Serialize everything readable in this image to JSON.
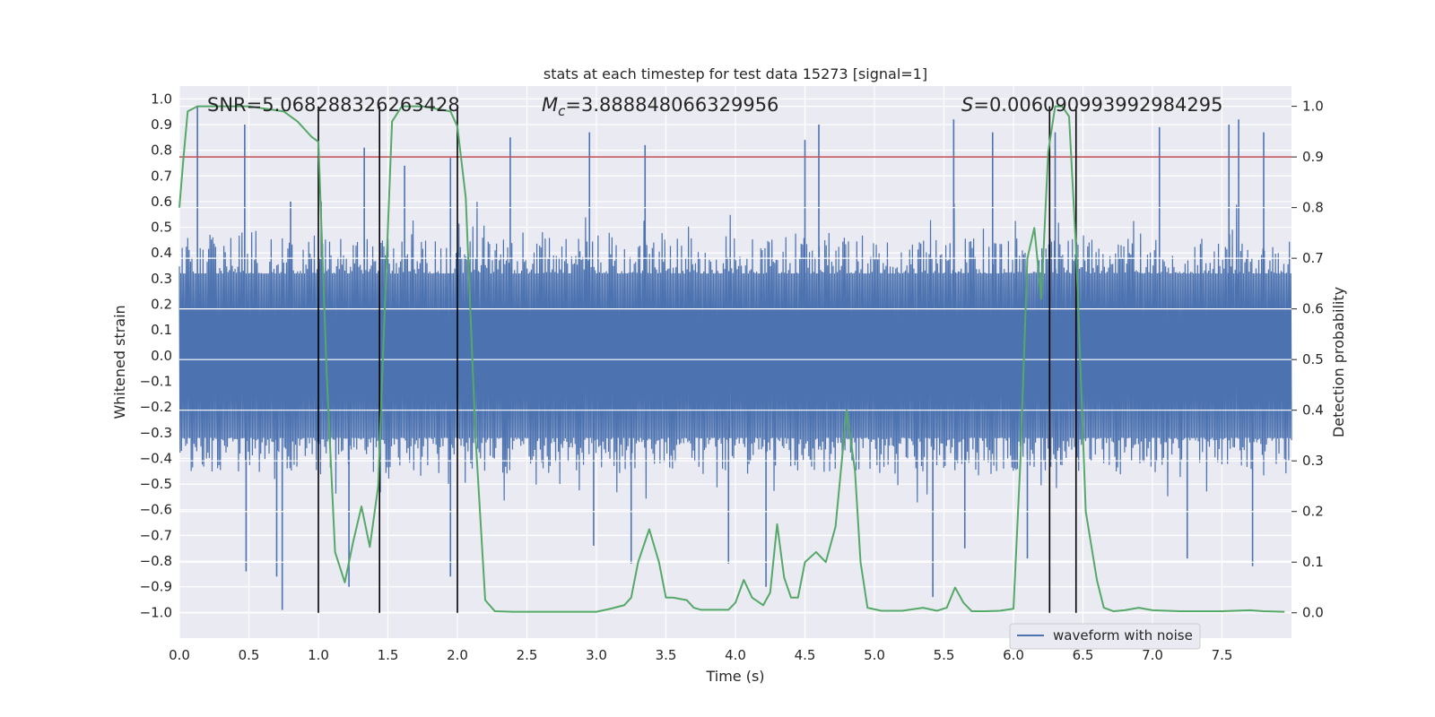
{
  "chart_data": {
    "type": "line",
    "title": "stats at each timestep for test data 15273 [signal=1]",
    "xlabel": "Time (s)",
    "ylabel": "Whitened strain",
    "y2label": "Detection probability",
    "xlim": [
      0,
      8
    ],
    "ylim": [
      -1.1,
      1.05
    ],
    "y2lim": [
      -0.05,
      1.04
    ],
    "x_ticks": [
      "0.0",
      "0.5",
      "1.0",
      "1.5",
      "2.0",
      "2.5",
      "3.0",
      "3.5",
      "4.0",
      "4.5",
      "5.0",
      "5.5",
      "6.0",
      "6.5",
      "7.0",
      "7.5"
    ],
    "y_ticks": [
      "1.0",
      "0.9",
      "0.8",
      "0.7",
      "0.6",
      "0.5",
      "0.4",
      "0.3",
      "0.2",
      "0.1",
      "0.0",
      "-0.1",
      "-0.2",
      "-0.3",
      "-0.4",
      "-0.5",
      "-0.6",
      "-0.7",
      "-0.8",
      "-0.9",
      "-1.0"
    ],
    "y2_ticks": [
      "1.0",
      "0.9",
      "0.8",
      "0.7",
      "0.6",
      "0.5",
      "0.4",
      "0.3",
      "0.2",
      "0.1",
      "0.0"
    ],
    "grid": true,
    "legend_position": "bottom-right",
    "annotations": {
      "snr": "SNR=5.068288326263428",
      "mc_symbol": "M",
      "mc_sub": "c",
      "mc_value": "=3.888848066329956",
      "s_symbol": "S",
      "s_value": "=0.006090993992984295"
    },
    "series": [
      {
        "name": "waveform with noise",
        "axis": "left",
        "color": "#4c72b0",
        "description": "whitened strain noise, envelope roughly +/-0.35 with spikes up to +/-0.9",
        "spikes_up": [
          [
            0.13,
            0.97
          ],
          [
            0.47,
            0.9
          ],
          [
            0.8,
            0.6
          ],
          [
            1.02,
            0.6
          ],
          [
            1.33,
            0.81
          ],
          [
            1.62,
            0.74
          ],
          [
            1.95,
            0.77
          ],
          [
            2.38,
            0.85
          ],
          [
            2.95,
            0.87
          ],
          [
            3.35,
            0.82
          ],
          [
            4.5,
            0.84
          ],
          [
            4.6,
            0.9
          ],
          [
            5.57,
            0.92
          ],
          [
            5.85,
            0.87
          ],
          [
            6.3,
            0.87
          ],
          [
            7.05,
            0.89
          ],
          [
            7.55,
            0.9
          ],
          [
            7.62,
            0.92
          ],
          [
            7.8,
            0.87
          ]
        ],
        "spikes_down": [
          [
            0.48,
            -0.84
          ],
          [
            0.7,
            -0.86
          ],
          [
            0.74,
            -0.99
          ],
          [
            1.22,
            -0.9
          ],
          [
            1.95,
            -0.86
          ],
          [
            2.98,
            -0.74
          ],
          [
            3.25,
            -0.81
          ],
          [
            3.95,
            -0.81
          ],
          [
            4.22,
            -0.9
          ],
          [
            5.42,
            -0.94
          ],
          [
            5.65,
            -0.75
          ],
          [
            6.1,
            -0.79
          ],
          [
            7.25,
            -0.79
          ],
          [
            7.72,
            -0.82
          ]
        ]
      },
      {
        "name": "",
        "axis": "right",
        "color": "#55a868",
        "x": [
          0.0,
          0.03,
          0.06,
          0.13,
          0.2,
          0.3,
          0.5,
          0.75,
          0.85,
          0.95,
          1.0,
          1.06,
          1.12,
          1.19,
          1.25,
          1.31,
          1.37,
          1.43,
          1.48,
          1.53,
          1.6,
          1.75,
          1.95,
          2.0,
          2.06,
          2.13,
          2.2,
          2.27,
          2.4,
          2.6,
          2.8,
          3.0,
          3.1,
          3.2,
          3.25,
          3.3,
          3.38,
          3.45,
          3.5,
          3.55,
          3.65,
          3.7,
          3.75,
          3.82,
          3.95,
          4.0,
          4.06,
          4.12,
          4.2,
          4.25,
          4.3,
          4.35,
          4.4,
          4.45,
          4.5,
          4.58,
          4.65,
          4.72,
          4.8,
          4.86,
          4.9,
          4.95,
          5.05,
          5.2,
          5.35,
          5.45,
          5.52,
          5.58,
          5.64,
          5.7,
          5.8,
          5.9,
          6.0,
          6.05,
          6.1,
          6.15,
          6.2,
          6.25,
          6.3,
          6.35,
          6.4,
          6.45,
          6.52,
          6.6,
          6.65,
          6.72,
          6.8,
          6.9,
          7.0,
          7.2,
          7.5,
          7.7,
          7.8,
          7.95
        ],
        "y": [
          0.8,
          0.9,
          0.99,
          1.0,
          1.0,
          1.0,
          1.0,
          0.99,
          0.97,
          0.94,
          0.93,
          0.47,
          0.12,
          0.06,
          0.14,
          0.21,
          0.13,
          0.25,
          0.62,
          0.97,
          1.0,
          1.0,
          0.99,
          0.96,
          0.82,
          0.35,
          0.025,
          0.003,
          0.002,
          0.002,
          0.002,
          0.002,
          0.008,
          0.015,
          0.03,
          0.1,
          0.165,
          0.1,
          0.03,
          0.03,
          0.025,
          0.01,
          0.006,
          0.006,
          0.006,
          0.02,
          0.065,
          0.03,
          0.015,
          0.04,
          0.175,
          0.07,
          0.03,
          0.03,
          0.1,
          0.12,
          0.1,
          0.17,
          0.4,
          0.28,
          0.1,
          0.01,
          0.004,
          0.004,
          0.01,
          0.004,
          0.01,
          0.05,
          0.02,
          0.003,
          0.003,
          0.004,
          0.008,
          0.3,
          0.7,
          0.76,
          0.62,
          0.91,
          1.0,
          1.0,
          0.98,
          0.72,
          0.2,
          0.065,
          0.01,
          0.003,
          0.005,
          0.01,
          0.005,
          0.003,
          0.003,
          0.005,
          0.003,
          0.002
        ]
      }
    ],
    "threshold_line": {
      "axis": "right",
      "value": 0.9,
      "color": "#c44e52"
    },
    "vertical_lines": [
      {
        "x": 1.0,
        "color": "#000000"
      },
      {
        "x": 1.44,
        "color": "#000000"
      },
      {
        "x": 2.0,
        "color": "#000000"
      },
      {
        "x": 6.26,
        "color": "#000000"
      },
      {
        "x": 6.45,
        "color": "#000000"
      }
    ]
  }
}
